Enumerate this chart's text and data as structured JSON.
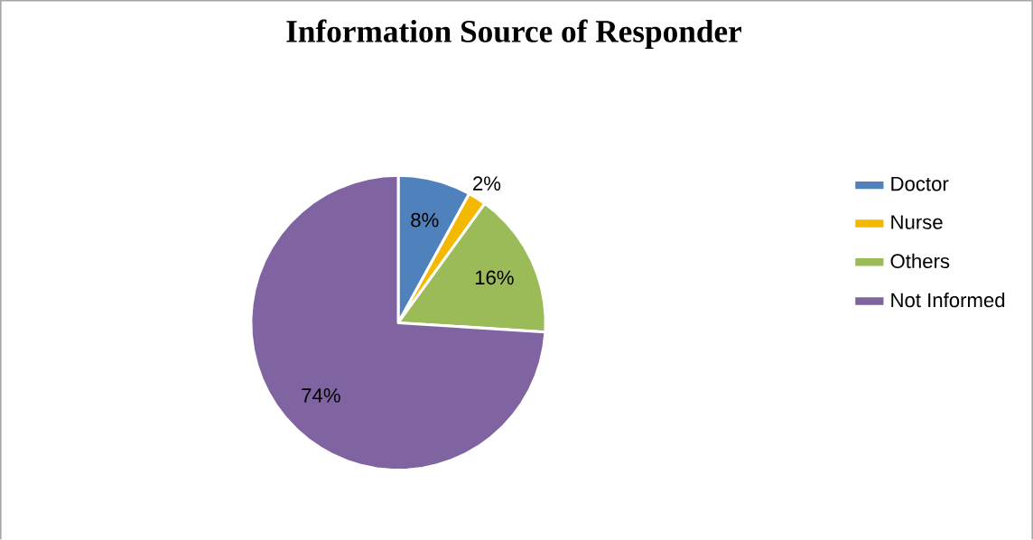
{
  "chart_data": {
    "type": "pie",
    "title": "Information Source of Responder",
    "categories": [
      "Doctor",
      "Nurse",
      "Others",
      "Not Informed"
    ],
    "values": [
      8,
      2,
      16,
      74
    ],
    "colors": [
      "#4f81bd",
      "#f5b800",
      "#9bbb59",
      "#8064a2"
    ],
    "value_labels": [
      "8%",
      "2%",
      "16%",
      "74%"
    ],
    "legend": "right"
  }
}
